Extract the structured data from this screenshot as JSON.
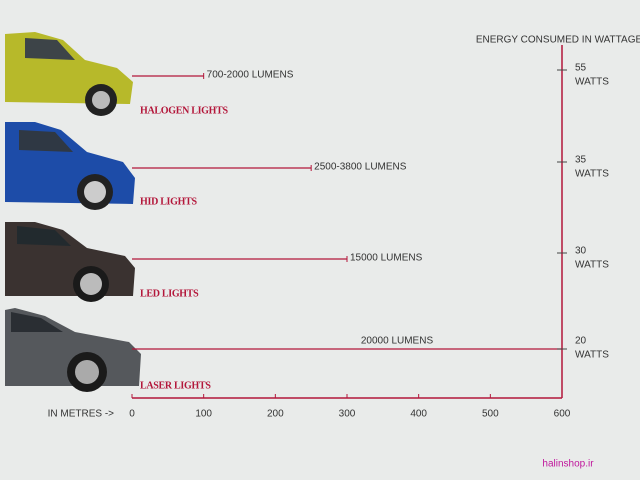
{
  "chart_data": {
    "type": "bar",
    "orientation": "horizontal",
    "right_axis_title": "ENERGY CONSUMED IN WATTAGE",
    "x_label": "IN METRES ->",
    "categories": [
      "HALOGEN LIGHTS",
      "HID LIGHTS",
      "LED LIGHTS",
      "LASER LIGHTS"
    ],
    "values": [
      100,
      250,
      300,
      600
    ],
    "lumens": [
      "700-2000 LUMENS",
      "2500-3800 LUMENS",
      "15000 LUMENS",
      "20000 LUMENS"
    ],
    "watts": [
      55,
      35,
      30,
      20
    ],
    "watt_unit": "WATTS",
    "color": "#b3163a",
    "xlim": [
      0,
      600
    ],
    "xticks": [
      0,
      100,
      200,
      300,
      400,
      500,
      600
    ]
  },
  "watermark": "halinshop.ir"
}
